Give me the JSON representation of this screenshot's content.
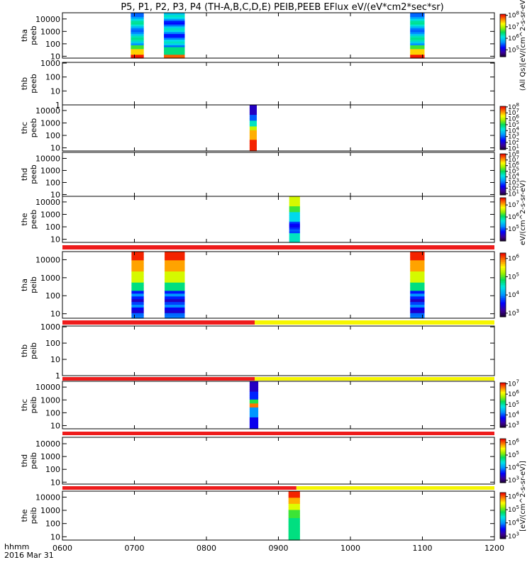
{
  "chart_data": {
    "type": "heatmap",
    "title": "P5, P1, P2, P3, P4 (TH-A,B,C,D,E) PEIB,PEEB EFlux eV/(eV*cm2*sec*sr)",
    "x_ticks": [
      "0600",
      "0700",
      "0800",
      "0900",
      "1000",
      "1100",
      "1200"
    ],
    "x_range": [
      600,
      1200
    ],
    "x_label_line1": "hhmm",
    "x_label_line2": "2016 Mar 31",
    "colorbar_units": [
      "(All Qs)[eV/(cm^2-s-sr-eV)]",
      "eV/(cm^2-s-sr-eV)",
      "[eV/(cm^2-s-sr-eV)]"
    ],
    "panels": [
      {
        "label1": "tha",
        "label2": "peeb",
        "y_ticks": [
          10,
          100,
          1000,
          10000
        ],
        "y_log_range": [
          0.85,
          4.5
        ],
        "cb_ticks": [
          "10^5",
          "10^6",
          "10^7",
          "10^8"
        ],
        "cb_log_range": [
          4.4,
          8.1
        ],
        "blocks": [
          {
            "start": 695,
            "end": 713,
            "profile": "hot"
          },
          {
            "start": 741,
            "end": 770,
            "profile": "cool"
          },
          {
            "start": 1083,
            "end": 1103,
            "profile": "hot"
          }
        ]
      },
      {
        "label1": "thb",
        "label2": "peeb",
        "y_ticks": [
          1,
          10,
          100,
          1000
        ],
        "y_log_range": [
          0,
          3.05
        ],
        "cb_ticks": [],
        "cb_log_range": [
          0,
          1
        ],
        "blocks": []
      },
      {
        "label1": "thc",
        "label2": "peeb",
        "y_ticks": [
          10,
          100,
          1000,
          10000
        ],
        "y_log_range": [
          0.75,
          4.45
        ],
        "cb_ticks": [
          "10^1",
          "10^2",
          "10^3",
          "10^4",
          "10^5",
          "10^6",
          "10^7",
          "10^8"
        ],
        "cb_log_range": [
          0.8,
          8.1
        ],
        "blocks": [
          {
            "start": 860,
            "end": 870,
            "profile": "thc_e"
          }
        ]
      },
      {
        "label1": "thd",
        "label2": "peeb",
        "y_ticks": [
          10,
          100,
          1000,
          10000
        ],
        "y_log_range": [
          0.85,
          4.5
        ],
        "cb_ticks": [
          "10^1",
          "10^2",
          "10^3",
          "10^4",
          "10^5",
          "10^6",
          "10^7",
          "10^8"
        ],
        "cb_log_range": [
          0.8,
          8.1
        ],
        "blocks": []
      },
      {
        "label1": "the",
        "label2": "peeb",
        "y_ticks": [
          10,
          100,
          1000,
          10000
        ],
        "y_log_range": [
          0.75,
          4.45
        ],
        "cb_ticks": [
          "10^5",
          "10^6",
          "10^7"
        ],
        "cb_log_range": [
          4.0,
          7.6
        ],
        "blocks": [
          {
            "start": 915,
            "end": 930,
            "profile": "the_e"
          }
        ],
        "bar_below": {
          "segments": [
            {
              "start": 600,
              "end": 1200,
              "color": "#ee1c1c"
            }
          ]
        }
      },
      {
        "label1": "tha",
        "label2": "peib",
        "y_ticks": [
          10,
          100,
          1000,
          10000
        ],
        "y_log_range": [
          0.75,
          4.45
        ],
        "cb_ticks": [
          "10^3",
          "10^4",
          "10^5",
          "10^6"
        ],
        "cb_log_range": [
          2.8,
          6.3
        ],
        "blocks": [
          {
            "start": 696,
            "end": 713,
            "profile": "ion"
          },
          {
            "start": 742,
            "end": 770,
            "profile": "ion"
          },
          {
            "start": 1083,
            "end": 1103,
            "profile": "ion"
          }
        ],
        "bar_below": {
          "segments": [
            {
              "start": 600,
              "end": 867,
              "color": "#ee1c1c"
            },
            {
              "start": 867,
              "end": 1200,
              "color": "#f6f600"
            }
          ]
        }
      },
      {
        "label1": "thb",
        "label2": "peib",
        "y_ticks": [
          1,
          10,
          100,
          1000
        ],
        "y_log_range": [
          0,
          3.05
        ],
        "cb_ticks": [],
        "cb_log_range": [
          0,
          1
        ],
        "blocks": [],
        "bar_below": {
          "segments": [
            {
              "start": 600,
              "end": 867,
              "color": "#ee1c1c"
            },
            {
              "start": 867,
              "end": 1200,
              "color": "#f6f600"
            }
          ]
        }
      },
      {
        "label1": "thc",
        "label2": "peib",
        "y_ticks": [
          10,
          100,
          1000,
          10000
        ],
        "y_log_range": [
          0.75,
          4.45
        ],
        "cb_ticks": [
          "10^3",
          "10^4",
          "10^5",
          "10^6",
          "10^7"
        ],
        "cb_log_range": [
          2.8,
          7.1
        ],
        "blocks": [
          {
            "start": 860,
            "end": 872,
            "profile": "ion_c"
          }
        ],
        "bar_below": {
          "segments": [
            {
              "start": 600,
              "end": 1200,
              "color": "#ee1c1c"
            }
          ]
        }
      },
      {
        "label1": "thd",
        "label2": "peib",
        "y_ticks": [
          10,
          100,
          1000,
          10000
        ],
        "y_log_range": [
          0.85,
          4.5
        ],
        "cb_ticks": [
          "10^3",
          "10^4",
          "10^5",
          "10^6"
        ],
        "cb_log_range": [
          2.8,
          6.3
        ],
        "blocks": [],
        "bar_below": {
          "segments": [
            {
              "start": 600,
              "end": 925,
              "color": "#ee1c1c"
            },
            {
              "start": 925,
              "end": 1200,
              "color": "#f6f600"
            }
          ]
        }
      },
      {
        "label1": "the",
        "label2": "peib",
        "y_ticks": [
          10,
          100,
          1000,
          10000
        ],
        "y_log_range": [
          0.75,
          4.45
        ],
        "cb_ticks": [
          "10^3",
          "10^4",
          "10^5",
          "10^6"
        ],
        "cb_log_range": [
          2.8,
          6.3
        ],
        "blocks": [
          {
            "start": 914,
            "end": 930,
            "profile": "ion_e"
          }
        ]
      }
    ]
  }
}
